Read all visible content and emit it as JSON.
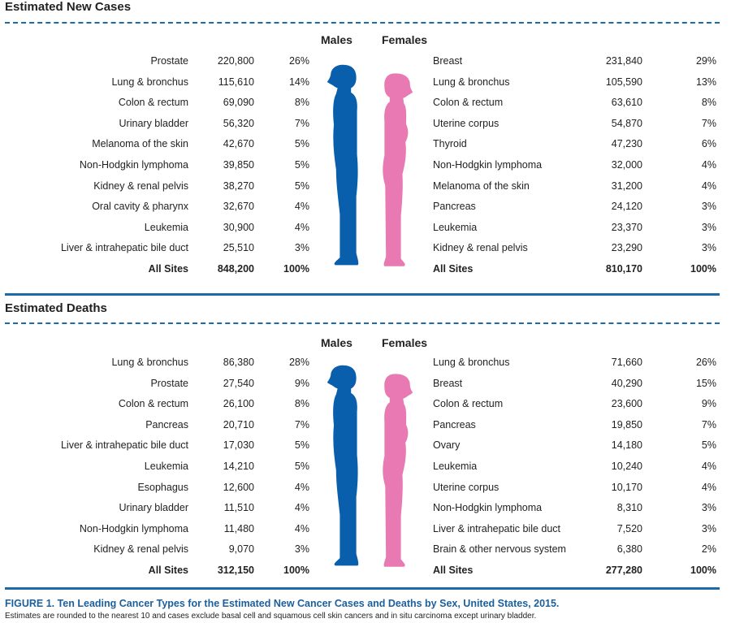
{
  "colors": {
    "male": "#0a5fad",
    "female": "#e979b2",
    "accent": "#1b6ba9"
  },
  "sections": [
    {
      "title": "Estimated New Cases",
      "males_label": "Males",
      "females_label": "Females",
      "males": [
        {
          "site": "Prostate",
          "count": "220,800",
          "pct": "26%"
        },
        {
          "site": "Lung & bronchus",
          "count": "115,610",
          "pct": "14%"
        },
        {
          "site": "Colon & rectum",
          "count": "69,090",
          "pct": "8%"
        },
        {
          "site": "Urinary bladder",
          "count": "56,320",
          "pct": "7%"
        },
        {
          "site": "Melanoma of the skin",
          "count": "42,670",
          "pct": "5%"
        },
        {
          "site": "Non-Hodgkin lymphoma",
          "count": "39,850",
          "pct": "5%"
        },
        {
          "site": "Kidney & renal pelvis",
          "count": "38,270",
          "pct": "5%"
        },
        {
          "site": "Oral cavity & pharynx",
          "count": "32,670",
          "pct": "4%"
        },
        {
          "site": "Leukemia",
          "count": "30,900",
          "pct": "4%"
        },
        {
          "site": "Liver & intrahepatic bile duct",
          "count": "25,510",
          "pct": "3%"
        },
        {
          "site": "All Sites",
          "count": "848,200",
          "pct": "100%"
        }
      ],
      "females": [
        {
          "site": "Breast",
          "count": "231,840",
          "pct": "29%"
        },
        {
          "site": "Lung & bronchus",
          "count": "105,590",
          "pct": "13%"
        },
        {
          "site": "Colon & rectum",
          "count": "63,610",
          "pct": "8%"
        },
        {
          "site": "Uterine corpus",
          "count": "54,870",
          "pct": "7%"
        },
        {
          "site": "Thyroid",
          "count": "47,230",
          "pct": "6%"
        },
        {
          "site": "Non-Hodgkin lymphoma",
          "count": "32,000",
          "pct": "4%"
        },
        {
          "site": "Melanoma of the skin",
          "count": "31,200",
          "pct": "4%"
        },
        {
          "site": "Pancreas",
          "count": "24,120",
          "pct": "3%"
        },
        {
          "site": "Leukemia",
          "count": "23,370",
          "pct": "3%"
        },
        {
          "site": "Kidney & renal pelvis",
          "count": "23,290",
          "pct": "3%"
        },
        {
          "site": "All Sites",
          "count": "810,170",
          "pct": "100%"
        }
      ]
    },
    {
      "title": "Estimated Deaths",
      "males_label": "Males",
      "females_label": "Females",
      "males": [
        {
          "site": "Lung & bronchus",
          "count": "86,380",
          "pct": "28%"
        },
        {
          "site": "Prostate",
          "count": "27,540",
          "pct": "9%"
        },
        {
          "site": "Colon & rectum",
          "count": "26,100",
          "pct": "8%"
        },
        {
          "site": "Pancreas",
          "count": "20,710",
          "pct": "7%"
        },
        {
          "site": "Liver & intrahepatic bile duct",
          "count": "17,030",
          "pct": "5%"
        },
        {
          "site": "Leukemia",
          "count": "14,210",
          "pct": "5%"
        },
        {
          "site": "Esophagus",
          "count": "12,600",
          "pct": "4%"
        },
        {
          "site": "Urinary bladder",
          "count": "11,510",
          "pct": "4%"
        },
        {
          "site": "Non-Hodgkin lymphoma",
          "count": "11,480",
          "pct": "4%"
        },
        {
          "site": "Kidney & renal pelvis",
          "count": "9,070",
          "pct": "3%"
        },
        {
          "site": "All Sites",
          "count": "312,150",
          "pct": "100%"
        }
      ],
      "females": [
        {
          "site": "Lung & bronchus",
          "count": "71,660",
          "pct": "26%"
        },
        {
          "site": "Breast",
          "count": "40,290",
          "pct": "15%"
        },
        {
          "site": "Colon & rectum",
          "count": "23,600",
          "pct": "9%"
        },
        {
          "site": "Pancreas",
          "count": "19,850",
          "pct": "7%"
        },
        {
          "site": "Ovary",
          "count": "14,180",
          "pct": "5%"
        },
        {
          "site": "Leukemia",
          "count": "10,240",
          "pct": "4%"
        },
        {
          "site": "Uterine corpus",
          "count": "10,170",
          "pct": "4%"
        },
        {
          "site": "Non-Hodgkin lymphoma",
          "count": "8,310",
          "pct": "3%"
        },
        {
          "site": "Liver & intrahepatic bile duct",
          "count": "7,520",
          "pct": "3%"
        },
        {
          "site": "Brain & other nervous system",
          "count": "6,380",
          "pct": "2%"
        },
        {
          "site": "All Sites",
          "count": "277,280",
          "pct": "100%"
        }
      ]
    }
  ],
  "caption": {
    "title": "FIGURE 1. Ten Leading Cancer Types for the Estimated New Cancer Cases and Deaths by Sex, United States, 2015.",
    "note": "Estimates are rounded to the nearest 10 and cases exclude basal cell and squamous cell skin cancers and in situ carcinoma except urinary bladder."
  }
}
